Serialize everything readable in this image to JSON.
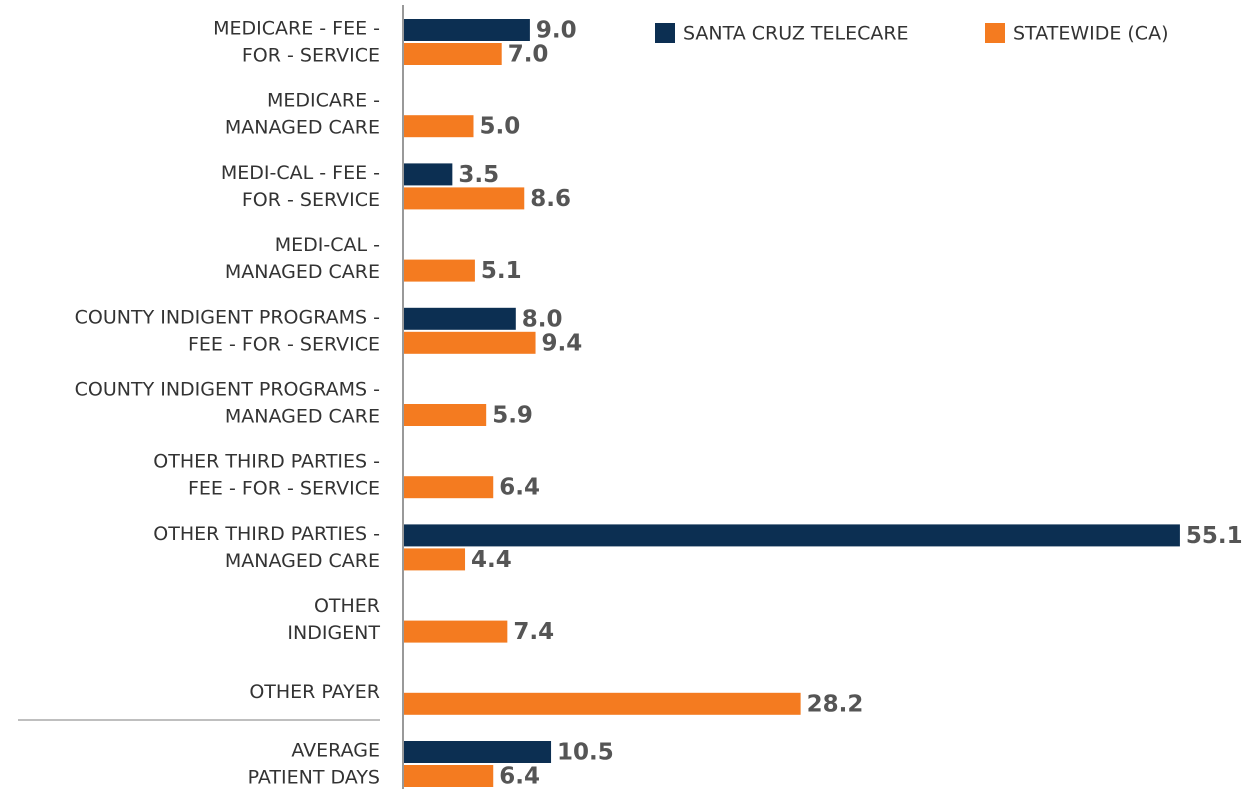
{
  "chart_data": {
    "type": "bar",
    "orientation": "horizontal",
    "categories": [
      [
        "MEDICARE - FEE -",
        "FOR - SERVICE"
      ],
      [
        "MEDICARE -",
        "MANAGED CARE"
      ],
      [
        "MEDI-CAL - FEE -",
        "FOR - SERVICE"
      ],
      [
        "MEDI-CAL -",
        "MANAGED CARE"
      ],
      [
        "COUNTY INDIGENT PROGRAMS -",
        "FEE - FOR - SERVICE"
      ],
      [
        "COUNTY INDIGENT PROGRAMS -",
        "MANAGED CARE"
      ],
      [
        "OTHER THIRD PARTIES -",
        "FEE - FOR - SERVICE"
      ],
      [
        "OTHER THIRD PARTIES -",
        "MANAGED CARE"
      ],
      [
        "OTHER",
        "INDIGENT"
      ],
      [
        "OTHER PAYER"
      ],
      [
        "AVERAGE",
        "PATIENT DAYS"
      ]
    ],
    "series": [
      {
        "name": "SANTA CRUZ TELECARE",
        "color": "#0c2f52",
        "values": [
          9.0,
          null,
          3.5,
          null,
          8.0,
          null,
          null,
          55.1,
          null,
          null,
          10.5
        ],
        "value_labels": [
          "9.0",
          null,
          "3.5",
          null,
          "8.0",
          null,
          null,
          "55.1",
          null,
          null,
          "10.5"
        ]
      },
      {
        "name": "STATEWIDE (CA)",
        "color": "#f47b20",
        "values": [
          7.0,
          5.0,
          8.6,
          5.1,
          9.4,
          5.9,
          6.4,
          4.4,
          7.4,
          28.2,
          6.4
        ],
        "value_labels": [
          "7.0",
          "5.0",
          "8.6",
          "5.1",
          "9.4",
          "5.9",
          "6.4",
          "4.4",
          "7.4",
          "28.2",
          "6.4"
        ]
      }
    ],
    "xlim": [
      0,
      60
    ],
    "legend": "top-right"
  }
}
